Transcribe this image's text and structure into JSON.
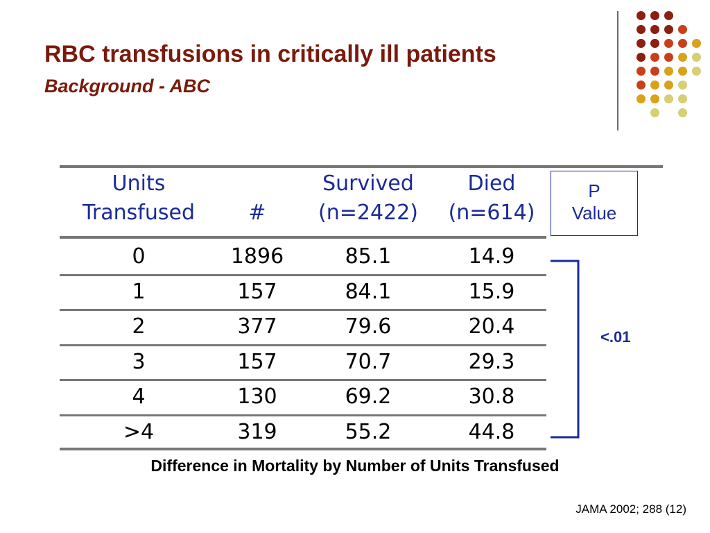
{
  "slide": {
    "title": "RBC transfusions in critically ill patients",
    "subtitle": "Background - ABC"
  },
  "table": {
    "headers": [
      {
        "line1": "Units",
        "line2": "Transfused"
      },
      {
        "line1": "",
        "line2": "#"
      },
      {
        "line1": "Survived",
        "line2": "(n=2422)"
      },
      {
        "line1": "Died",
        "line2": "(n=614)"
      }
    ],
    "rows": [
      [
        "0",
        "1896",
        "85.1",
        "14.9"
      ],
      [
        "1",
        "157",
        "84.1",
        "15.9"
      ],
      [
        "2",
        "377",
        "79.6",
        "20.4"
      ],
      [
        "3",
        "157",
        "70.7",
        "29.3"
      ],
      [
        "4",
        "130",
        "69.2",
        "30.8"
      ],
      [
        ">4",
        "319",
        "55.2",
        "44.8"
      ]
    ]
  },
  "p_value": {
    "header_line1": "P",
    "header_line2": "Value",
    "value": "<.01"
  },
  "caption": "Difference in Mortality by Number of Units Transfused",
  "citation": "JAMA 2002; 288 (12)",
  "colors": {
    "title": "#7a1a0c",
    "header_text": "#1a2a9a",
    "rule": "#777777",
    "dot_palette": [
      "#8b1f10",
      "#c8401a",
      "#d9a21a",
      "#d6cf74"
    ]
  }
}
